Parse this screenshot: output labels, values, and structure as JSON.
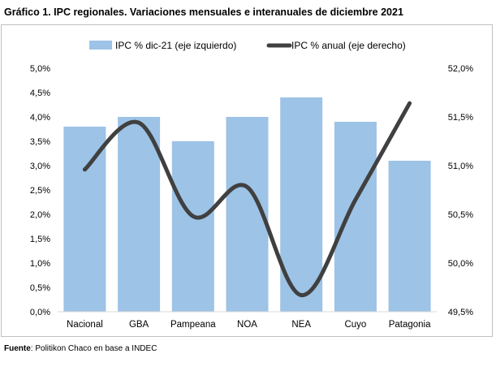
{
  "title": "Gráfico 1. IPC regionales. Variaciones mensuales e interanuales de diciembre 2021",
  "source": {
    "label": "Fuente",
    "text": ": Politikon Chaco en base a INDEC"
  },
  "chart_data": {
    "type": "bar",
    "categories": [
      "Nacional",
      "GBA",
      "Pampeana",
      "NOA",
      "NEA",
      "Cuyo",
      "Patagonia"
    ],
    "series": [
      {
        "name": "IPC % dic-21 (eje izquierdo)",
        "type": "bar",
        "axis": "left",
        "color": "#9dc3e6",
        "values": [
          3.8,
          4.0,
          3.5,
          4.0,
          4.4,
          3.9,
          3.1
        ]
      },
      {
        "name": "IPC % anual (eje derecho)",
        "type": "line",
        "axis": "right",
        "color": "#404040",
        "values": [
          50.96,
          51.44,
          50.48,
          50.78,
          49.67,
          50.65,
          51.64
        ]
      }
    ],
    "y_left": {
      "min": 0,
      "max": 5,
      "step": 0.5,
      "tick_labels": [
        "0,0%",
        "0,5%",
        "1,0%",
        "1,5%",
        "2,0%",
        "2,5%",
        "3,0%",
        "3,5%",
        "4,0%",
        "4,5%",
        "5,0%"
      ]
    },
    "y_right": {
      "min": 49.5,
      "max": 52,
      "step": 0.5,
      "tick_labels": [
        "49,5%",
        "50,0%",
        "50,5%",
        "51,0%",
        "51,5%",
        "52,0%"
      ]
    },
    "grid": false,
    "legend": "top-center"
  }
}
